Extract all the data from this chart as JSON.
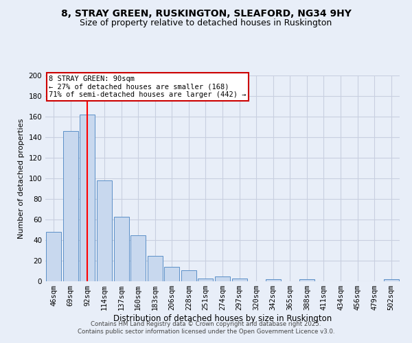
{
  "title": "8, STRAY GREEN, RUSKINGTON, SLEAFORD, NG34 9HY",
  "subtitle": "Size of property relative to detached houses in Ruskington",
  "xlabel": "Distribution of detached houses by size in Ruskington",
  "ylabel": "Number of detached properties",
  "categories": [
    "46sqm",
    "69sqm",
    "92sqm",
    "114sqm",
    "137sqm",
    "160sqm",
    "183sqm",
    "206sqm",
    "228sqm",
    "251sqm",
    "274sqm",
    "297sqm",
    "320sqm",
    "342sqm",
    "365sqm",
    "388sqm",
    "411sqm",
    "434sqm",
    "456sqm",
    "479sqm",
    "502sqm"
  ],
  "values": [
    48,
    146,
    162,
    98,
    63,
    45,
    25,
    14,
    11,
    3,
    5,
    3,
    0,
    2,
    0,
    2,
    0,
    0,
    0,
    0,
    2
  ],
  "bar_color": "#c8d8ee",
  "bar_edge_color": "#5b8fc7",
  "red_line_index": 2,
  "annotation_text": "8 STRAY GREEN: 90sqm\n← 27% of detached houses are smaller (168)\n71% of semi-detached houses are larger (442) →",
  "annotation_box_color": "#ffffff",
  "annotation_box_edge": "#cc0000",
  "annotation_fontsize": 7.5,
  "title_fontsize": 10,
  "subtitle_fontsize": 9,
  "ylabel_fontsize": 8,
  "xlabel_fontsize": 8.5,
  "tick_fontsize": 7.5,
  "ylim": [
    0,
    200
  ],
  "yticks": [
    0,
    20,
    40,
    60,
    80,
    100,
    120,
    140,
    160,
    180,
    200
  ],
  "grid_color": "#c8cfe0",
  "background_color": "#e8eef8",
  "footer": "Contains HM Land Registry data © Crown copyright and database right 2025.\nContains public sector information licensed under the Open Government Licence v3.0."
}
